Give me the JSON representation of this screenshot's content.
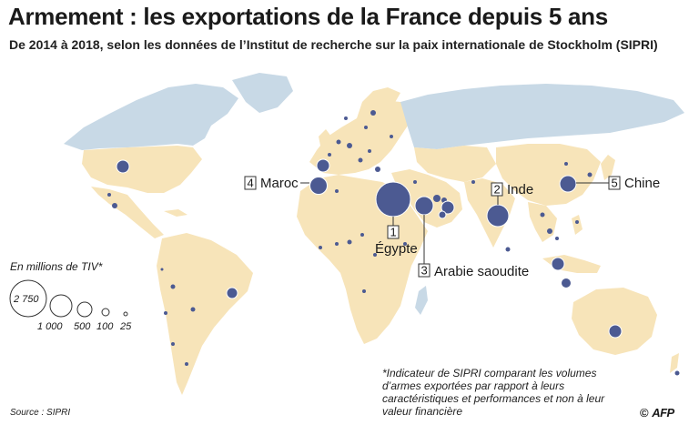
{
  "header": {
    "title": "Armement : les exportations de la France depuis 5 ans",
    "subtitle": "De 2014 à 2018, selon les données de l’Institut de recherche sur la paix internationale de Stockholm (SIPRI)"
  },
  "legend": {
    "title": "En millions de TIV*",
    "items": [
      {
        "label": "2 750",
        "value": 2750
      },
      {
        "label": "1 000",
        "value": 1000
      },
      {
        "label": "500",
        "value": 500
      },
      {
        "label": "100",
        "value": 100
      },
      {
        "label": "25",
        "value": 25
      }
    ]
  },
  "top_recipients": [
    {
      "rank": "1",
      "name": "Égypte"
    },
    {
      "rank": "2",
      "name": "Inde"
    },
    {
      "rank": "3",
      "name": "Arabie saoudite"
    },
    {
      "rank": "4",
      "name": "Maroc"
    },
    {
      "rank": "5",
      "name": "Chine"
    }
  ],
  "footnote": "*Indicateur de SIPRI comparant les volumes d’armes exportées par rapport à leurs caractéristiques et performances et non à leur valeur financière",
  "source": "Source : SIPRI",
  "credit": {
    "symbol": "©",
    "brand": "AFP"
  },
  "colors": {
    "ocean": "#ffffff",
    "land_other": "#c8d9e6",
    "land_recipient": "#f7e4b9",
    "bubble": "#4c5a92",
    "bubble_outline": "#ffffff",
    "label_box": "#333333"
  }
}
